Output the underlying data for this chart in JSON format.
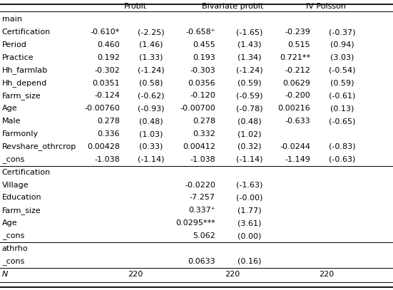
{
  "col_headers": [
    "Probit",
    "Bivariate probit",
    "IV Poisson"
  ],
  "rows": [
    {
      "label": "main",
      "vals": [
        "",
        "",
        "",
        "",
        "",
        ""
      ],
      "section": true
    },
    {
      "label": "Certification",
      "vals": [
        "-0.610*",
        "(-2.25)",
        "-0.658⁺",
        "(-1.65)",
        "-0.239",
        "(-0.37)"
      ]
    },
    {
      "label": "Period",
      "vals": [
        "0.460",
        "(1.46)",
        "0.455",
        "(1.43)",
        "0.515",
        "(0.94)"
      ]
    },
    {
      "label": "Practice",
      "vals": [
        "0.192",
        "(1.33)",
        "0.193",
        "(1.34)",
        "0.721**",
        "(3.03)"
      ]
    },
    {
      "label": "Hh_farmlab",
      "vals": [
        "-0.302",
        "(-1.24)",
        "-0.303",
        "(-1.24)",
        "-0.212",
        "(-0.54)"
      ]
    },
    {
      "label": "Hh_depend",
      "vals": [
        "0.0351",
        "(0.58)",
        "0.0356",
        "(0.59)",
        "0.0629",
        "(0.59)"
      ]
    },
    {
      "label": "Farm_size",
      "vals": [
        "-0.124",
        "(-0.62)",
        "-0.120",
        "(-0.59)",
        "-0.200",
        "(-0.61)"
      ]
    },
    {
      "label": "Age",
      "vals": [
        "-0.00760",
        "(-0.93)",
        "-0.00700",
        "(-0.78)",
        "0.00216",
        "(0.13)"
      ]
    },
    {
      "label": "Male",
      "vals": [
        "0.278",
        "(0.48)",
        "0.278",
        "(0.48)",
        "-0.633",
        "(-0.65)"
      ]
    },
    {
      "label": "Farmonly",
      "vals": [
        "0.336",
        "(1.03)",
        "0.332",
        "(1.02)",
        "",
        ""
      ]
    },
    {
      "label": "Revshare_othrcrop",
      "vals": [
        "0.00428",
        "(0.33)",
        "0.00412",
        "(0.32)",
        "-0.0244",
        "(-0.83)"
      ]
    },
    {
      "label": "_cons",
      "vals": [
        "-1.038",
        "(-1.14)",
        "-1.038",
        "(-1.14)",
        "-1.149",
        "(-0.63)"
      ]
    },
    {
      "label": "Certification",
      "vals": [
        "",
        "",
        "",
        "",
        "",
        ""
      ],
      "section": true
    },
    {
      "label": "Village",
      "vals": [
        "",
        "",
        "-0.0220",
        "(-1.63)",
        "",
        ""
      ]
    },
    {
      "label": "Education",
      "vals": [
        "",
        "",
        "-7.257",
        "(-0.00)",
        "",
        ""
      ]
    },
    {
      "label": "Farm_size",
      "vals": [
        "",
        "",
        "0.337⁺",
        "(1.77)",
        "",
        ""
      ]
    },
    {
      "label": "Age",
      "vals": [
        "",
        "",
        "0.0295***",
        "(3.61)",
        "",
        ""
      ]
    },
    {
      "label": "_cons",
      "vals": [
        "",
        "",
        "5.062",
        "(0.00)",
        "",
        ""
      ]
    },
    {
      "label": "athrho",
      "vals": [
        "",
        "",
        "",
        "",
        "",
        ""
      ],
      "section": true
    },
    {
      "label": "_cons",
      "vals": [
        "",
        "",
        "0.0633",
        "(0.16)",
        "",
        ""
      ]
    },
    {
      "label": "N",
      "vals": [
        "220",
        "",
        "220",
        "",
        "220",
        ""
      ],
      "N_row": true
    }
  ],
  "bg_color": "#ffffff",
  "text_color": "#000000",
  "font_size": 8.0,
  "figsize": [
    5.51,
    4.07
  ],
  "dpi": 100
}
